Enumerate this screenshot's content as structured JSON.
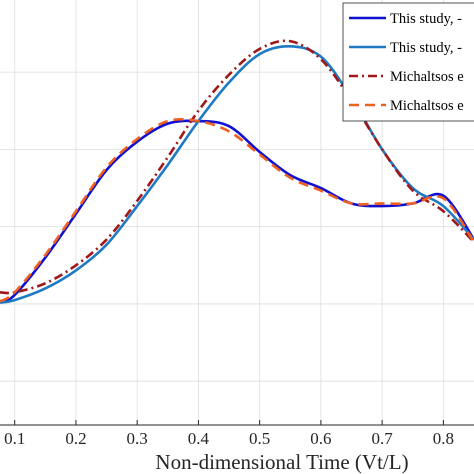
{
  "chart_data": {
    "type": "line",
    "xlabel": "Non-dimensional Time (Vt/L)",
    "ylabel": "",
    "xlim": [
      0.076,
      0.85
    ],
    "ylim": [
      -0.77,
      0.88
    ],
    "grid": true,
    "legend_placement": "top-right",
    "x_ticks": [
      0.1,
      0.2,
      0.3,
      0.4,
      0.5,
      0.6,
      0.7,
      0.8
    ],
    "x_tick_labels": [
      "0.1",
      "0.2",
      "0.3",
      "0.4",
      "0.5",
      "0.6",
      "0.7",
      "0.8"
    ],
    "y_ticks": [
      -0.6,
      -0.3,
      0.0,
      0.3,
      0.6
    ],
    "legend": [
      "This study, -",
      "This study, -",
      "Michaltsos e",
      "Michaltsos e"
    ],
    "series": [
      {
        "name": "This study, -",
        "color": "#1010d0",
        "style": "solid",
        "x": [
          0.076,
          0.1,
          0.15,
          0.2,
          0.25,
          0.3,
          0.35,
          0.4,
          0.45,
          0.5,
          0.55,
          0.6,
          0.65,
          0.7,
          0.75,
          0.8,
          0.85
        ],
        "y": [
          -0.295,
          -0.265,
          -0.12,
          0.05,
          0.22,
          0.33,
          0.4,
          0.41,
          0.39,
          0.29,
          0.2,
          0.15,
          0.09,
          0.08,
          0.09,
          0.12,
          -0.05
        ]
      },
      {
        "name": "This study, -",
        "color": "#1f7ac4",
        "style": "solid",
        "x": [
          0.076,
          0.1,
          0.15,
          0.2,
          0.25,
          0.3,
          0.35,
          0.4,
          0.45,
          0.5,
          0.55,
          0.6,
          0.65,
          0.7,
          0.75,
          0.8,
          0.85
        ],
        "y": [
          -0.295,
          -0.285,
          -0.24,
          -0.17,
          -0.07,
          0.08,
          0.24,
          0.41,
          0.56,
          0.67,
          0.7,
          0.66,
          0.5,
          0.3,
          0.15,
          0.08,
          -0.05
        ]
      },
      {
        "name": "Michaltsos e",
        "color": "#a01818",
        "style": "dashdot",
        "x": [
          0.076,
          0.1,
          0.15,
          0.2,
          0.25,
          0.3,
          0.35,
          0.4,
          0.45,
          0.5,
          0.55,
          0.6,
          0.65,
          0.7,
          0.75,
          0.8,
          0.85
        ],
        "y": [
          -0.255,
          -0.255,
          -0.22,
          -0.15,
          -0.05,
          0.1,
          0.27,
          0.45,
          0.59,
          0.69,
          0.72,
          0.65,
          0.49,
          0.3,
          0.14,
          0.06,
          -0.06
        ]
      },
      {
        "name": "Michaltsos e",
        "color": "#f06020",
        "style": "dashed",
        "x": [
          0.076,
          0.1,
          0.15,
          0.2,
          0.25,
          0.3,
          0.35,
          0.4,
          0.45,
          0.5,
          0.55,
          0.6,
          0.65,
          0.7,
          0.75,
          0.8,
          0.85
        ],
        "y": [
          -0.29,
          -0.255,
          -0.11,
          0.06,
          0.23,
          0.34,
          0.41,
          0.41,
          0.37,
          0.28,
          0.19,
          0.14,
          0.09,
          0.09,
          0.09,
          0.11,
          -0.06
        ]
      }
    ]
  }
}
